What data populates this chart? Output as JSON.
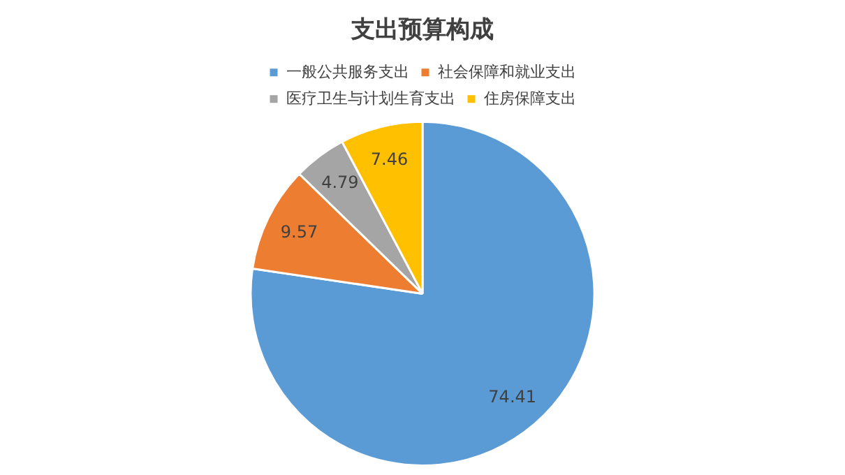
{
  "chart_data": {
    "type": "pie",
    "title": "支出预算构成",
    "categories": [
      "一般公共服务支出",
      "社会保障和就业支出",
      "医疗卫生与计划生育支出",
      "住房保障支出"
    ],
    "values": [
      74.41,
      9.57,
      4.79,
      7.46
    ],
    "colors": [
      "#5b9bd5",
      "#ed7d31",
      "#a5a5a5",
      "#ffc000"
    ],
    "data_labels": true,
    "legend": "top"
  }
}
